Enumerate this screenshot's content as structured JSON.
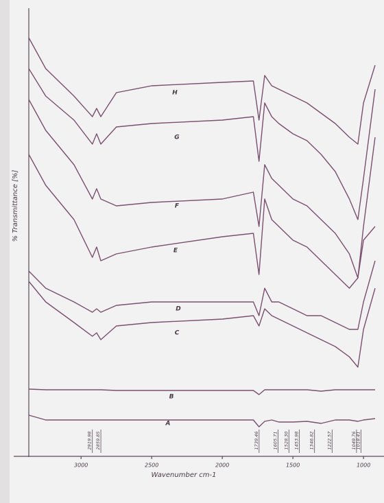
{
  "chart_data": {
    "type": "line",
    "x_label": "Wavenumber cm-1",
    "y_label": "% Transmittance [%]",
    "xlim": [
      3370,
      855
    ],
    "ylim": [
      0,
      650
    ],
    "xticks": [
      3000,
      2500,
      2000,
      1500,
      1000
    ],
    "x": [
      3370,
      3250,
      3050,
      2920,
      2890,
      2860,
      2750,
      2500,
      2000,
      1780,
      1740,
      1700,
      1650,
      1600,
      1500,
      1400,
      1300,
      1200,
      1100,
      1040,
      1000,
      918
    ],
    "series": [
      {
        "name": "H",
        "color": "#7a4f70",
        "values": [
          610,
          565,
          525,
          495,
          507,
          495,
          530,
          540,
          545,
          547,
          490,
          555,
          540,
          535,
          525,
          515,
          500,
          485,
          465,
          455,
          515,
          570
        ]
      },
      {
        "name": "G",
        "color": "#7a4f70",
        "values": [
          565,
          525,
          490,
          455,
          470,
          455,
          480,
          485,
          490,
          495,
          430,
          515,
          495,
          485,
          470,
          460,
          440,
          415,
          375,
          345,
          405,
          535
        ]
      },
      {
        "name": "F",
        "color": "#7a4f70",
        "values": [
          520,
          475,
          425,
          375,
          390,
          375,
          365,
          370,
          375,
          385,
          335,
          425,
          405,
          395,
          375,
          365,
          345,
          325,
          295,
          260,
          335,
          465
        ]
      },
      {
        "name": "E",
        "color": "#7a4f70",
        "values": [
          440,
          395,
          345,
          290,
          305,
          285,
          295,
          305,
          320,
          325,
          265,
          375,
          345,
          335,
          315,
          305,
          285,
          265,
          245,
          260,
          315,
          335
        ]
      },
      {
        "name": "D",
        "color": "#7a4f70",
        "values": [
          270,
          245,
          225,
          210,
          215,
          210,
          220,
          225,
          225,
          225,
          205,
          245,
          225,
          225,
          215,
          205,
          205,
          195,
          185,
          185,
          225,
          285
        ]
      },
      {
        "name": "C",
        "color": "#7a4f70",
        "values": [
          255,
          225,
          195,
          175,
          180,
          170,
          190,
          195,
          200,
          205,
          190,
          215,
          205,
          200,
          190,
          180,
          170,
          160,
          145,
          130,
          185,
          245
        ]
      },
      {
        "name": "B",
        "color": "#7a4f70",
        "values": [
          98,
          97,
          97,
          97,
          97,
          97,
          96,
          96,
          96,
          96,
          90,
          97,
          97,
          97,
          97,
          97,
          95,
          97,
          97,
          97,
          97,
          97
        ]
      },
      {
        "name": "A",
        "color": "#7a4f70",
        "values": [
          60,
          53,
          53,
          53,
          53,
          53,
          53,
          53,
          53,
          53,
          43,
          51,
          53,
          50,
          50,
          51,
          48,
          53,
          53,
          51,
          53,
          55
        ]
      }
    ],
    "peaks": [
      {
        "value": 2919.98,
        "label": "2919.98"
      },
      {
        "value": 2859.85,
        "label": "2859.85"
      },
      {
        "value": 1739.46,
        "label": "1739.46"
      },
      {
        "value": 1605.71,
        "label": "1605.71"
      },
      {
        "value": 1528.3,
        "label": "1528.30"
      },
      {
        "value": 1453.98,
        "label": "1453.98"
      },
      {
        "value": 1346.82,
        "label": "1346.82"
      },
      {
        "value": 1222.57,
        "label": "1222.57"
      },
      {
        "value": 1049.76,
        "label": "1049.76"
      },
      {
        "value": 1018.41,
        "label": "1018.41"
      }
    ]
  }
}
